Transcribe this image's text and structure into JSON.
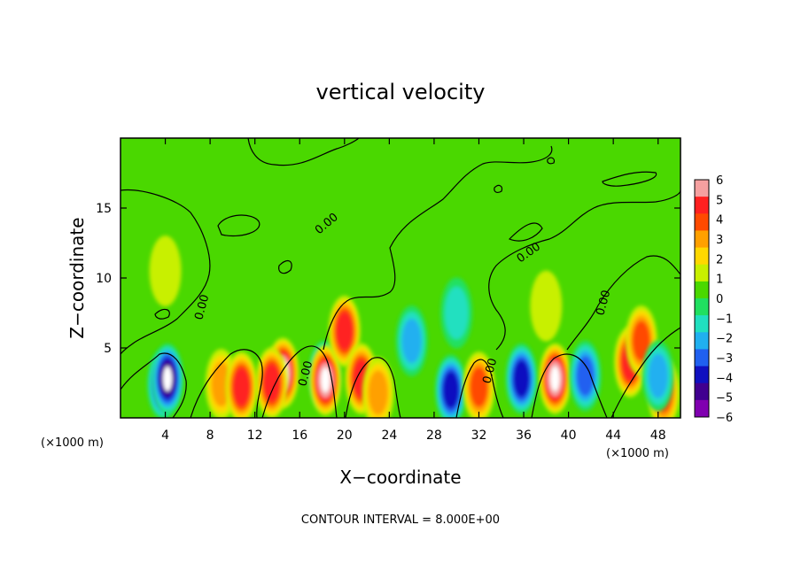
{
  "chart_data": {
    "type": "heatmap",
    "title": "vertical velocity",
    "xlabel": "X−coordinate",
    "ylabel": "Z−coordinate",
    "x_multiplier": "(×1000 m)",
    "z_multiplier": "(×1000 m)",
    "xlim": [
      0,
      50
    ],
    "ylim": [
      0,
      20
    ],
    "x_ticks": [
      4,
      8,
      12,
      16,
      20,
      24,
      28,
      32,
      36,
      40,
      44,
      48
    ],
    "y_ticks": [
      5,
      10,
      15
    ],
    "colorbar": {
      "levels": [
        6,
        5,
        4,
        3,
        2,
        1,
        0,
        -1,
        -2,
        -3,
        -4,
        -5,
        -6
      ],
      "labels": [
        "6",
        "5",
        "4",
        "3",
        "2",
        "1",
        "0",
        "−1",
        "−2",
        "−3",
        "−4",
        "−5",
        "−6"
      ],
      "colors": [
        "#f5a0a0",
        "#ff2020",
        "#ff4a00",
        "#ffa000",
        "#ffd800",
        "#c8f000",
        "#4ad800",
        "#20e060",
        "#20e0c0",
        "#20b0f0",
        "#2060f0",
        "#1010c0",
        "#400090",
        "#8000b0"
      ]
    },
    "contour_labels": [
      "0.00",
      "0.00",
      "0.00",
      "0.00",
      "0.00",
      "0.00",
      "0.00"
    ],
    "contour_interval_text": "CONTOUR INTERVAL = 8.000E+00",
    "features": [
      {
        "x": 3.8,
        "z": 2.4,
        "w": -5
      },
      {
        "x": 4.2,
        "z": 2.8,
        "w": -6
      },
      {
        "x": 9.0,
        "z": 2.4,
        "w": 3
      },
      {
        "x": 10.8,
        "z": 2.2,
        "w": 5
      },
      {
        "x": 14.5,
        "z": 3.2,
        "w": 6
      },
      {
        "x": 13.5,
        "z": 2.5,
        "w": 5
      },
      {
        "x": 18.2,
        "z": 3.0,
        "w": -6
      },
      {
        "x": 18.3,
        "z": 2.7,
        "w": 6
      },
      {
        "x": 20.0,
        "z": 6.2,
        "w": 5
      },
      {
        "x": 21.5,
        "z": 2.8,
        "w": 5
      },
      {
        "x": 23.0,
        "z": 1.8,
        "w": 3
      },
      {
        "x": 26.0,
        "z": 5.5,
        "w": -3
      },
      {
        "x": 29.5,
        "z": 2.0,
        "w": -5
      },
      {
        "x": 32.0,
        "z": 2.2,
        "w": 4
      },
      {
        "x": 35.8,
        "z": 2.8,
        "w": -5
      },
      {
        "x": 38.8,
        "z": 2.8,
        "w": 6
      },
      {
        "x": 41.5,
        "z": 3.0,
        "w": -4
      },
      {
        "x": 45.5,
        "z": 4.0,
        "w": 5
      },
      {
        "x": 46.5,
        "z": 5.5,
        "w": 4
      },
      {
        "x": 48.5,
        "z": 1.8,
        "w": 4
      },
      {
        "x": 48.0,
        "z": 3.0,
        "w": -3
      },
      {
        "x": 4.0,
        "z": 10.5,
        "w": 1
      },
      {
        "x": 30.0,
        "z": 7.5,
        "w": -2
      },
      {
        "x": 38.0,
        "z": 8.0,
        "w": 1
      }
    ]
  }
}
